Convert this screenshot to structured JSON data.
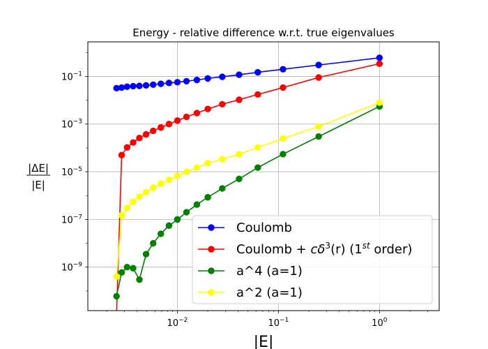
{
  "chart_data": {
    "type": "line",
    "title": "Energy - relative difference w.r.t. true eigenvalues",
    "xlabel": "|E|",
    "ylabel_num": "|ΔE|",
    "ylabel_den": "|E|",
    "xscale": "log",
    "yscale": "log",
    "xlim": [
      0.0013,
      3.9
    ],
    "ylim": [
      1.5e-11,
      2.8
    ],
    "grid": true,
    "legend_position": "lower-right",
    "x_ticks": [
      {
        "value": 0.01,
        "base": "10",
        "exp": "−2"
      },
      {
        "value": 0.1,
        "base": "10",
        "exp": "−1"
      },
      {
        "value": 1,
        "base": "10",
        "exp": "0"
      }
    ],
    "y_ticks": [
      {
        "value": 1e-09,
        "base": "10",
        "exp": "−9"
      },
      {
        "value": 1e-07,
        "base": "10",
        "exp": "−7"
      },
      {
        "value": 1e-05,
        "base": "10",
        "exp": "−5"
      },
      {
        "value": 0.001,
        "base": "10",
        "exp": "−3"
      },
      {
        "value": 0.1,
        "base": "10",
        "exp": "−1"
      }
    ],
    "series": [
      {
        "name": "Coulomb",
        "legend_parts": [
          "Coulomb"
        ],
        "color": "#0000ff",
        "x": [
          0.0025,
          0.00281,
          0.00318,
          0.00365,
          0.00421,
          0.0049,
          0.00576,
          0.00686,
          0.00826,
          0.01,
          0.0123,
          0.0156,
          0.02,
          0.0278,
          0.0408,
          0.0625,
          0.111,
          0.25,
          1.0
        ],
        "y": [
          0.032,
          0.034,
          0.037,
          0.039,
          0.04,
          0.042,
          0.045,
          0.049,
          0.053,
          0.057,
          0.063,
          0.071,
          0.082,
          0.096,
          0.117,
          0.148,
          0.2,
          0.3,
          0.6
        ]
      },
      {
        "name": "Coulomb + cδ³(r) (1st order)",
        "legend_parts": [
          "Coulomb + ",
          "cδ",
          "3",
          "(r) (1",
          "st",
          " order)"
        ],
        "color": "#ff0000",
        "x": [
          0.0025,
          0.00281,
          0.00318,
          0.00365,
          0.00421,
          0.0049,
          0.00576,
          0.00686,
          0.00826,
          0.01,
          0.0123,
          0.0156,
          0.02,
          0.0278,
          0.0408,
          0.0625,
          0.111,
          0.25,
          1.0
        ],
        "y": [
          1e-11,
          5e-05,
          0.000105,
          0.00017,
          0.00026,
          0.00037,
          0.00052,
          0.00072,
          0.001,
          0.0014,
          0.002,
          0.0029,
          0.0043,
          0.0068,
          0.0105,
          0.0175,
          0.034,
          0.09,
          0.34
        ]
      },
      {
        "name": "a^4 (a=1)",
        "legend_parts": [
          "a^4 (a=1)"
        ],
        "color": "#008000",
        "x": [
          0.0025,
          0.00281,
          0.00318,
          0.00365,
          0.00421,
          0.0049,
          0.00576,
          0.00686,
          0.00826,
          0.01,
          0.0123,
          0.0156,
          0.02,
          0.0278,
          0.0408,
          0.0625,
          0.111,
          0.25,
          1.0
        ],
        "y": [
          6e-11,
          6e-10,
          1e-09,
          9e-10,
          3e-10,
          3.5e-09,
          1e-08,
          2.5e-08,
          5.5e-08,
          1e-07,
          2e-07,
          4.2e-07,
          8.5e-07,
          2e-06,
          5e-06,
          1.5e-05,
          5.5e-05,
          0.0003,
          0.0055
        ]
      },
      {
        "name": "a^2 (a=1)",
        "legend_parts": [
          "a^2 (a=1)"
        ],
        "color": "#ffff00",
        "x": [
          0.0025,
          0.00281,
          0.00318,
          0.00365,
          0.00421,
          0.0049,
          0.00576,
          0.00686,
          0.00826,
          0.01,
          0.0123,
          0.0156,
          0.02,
          0.0278,
          0.0408,
          0.0625,
          0.111,
          0.25,
          1.0
        ],
        "y": [
          4e-10,
          1.5e-07,
          3e-07,
          5.5e-07,
          9e-07,
          1.4e-06,
          2.2e-06,
          3.2e-06,
          4.6e-06,
          6.8e-06,
          1e-05,
          1.5e-05,
          2.3e-05,
          3.4e-05,
          5.5e-05,
          0.000105,
          0.00025,
          0.0008,
          0.008
        ]
      }
    ]
  }
}
